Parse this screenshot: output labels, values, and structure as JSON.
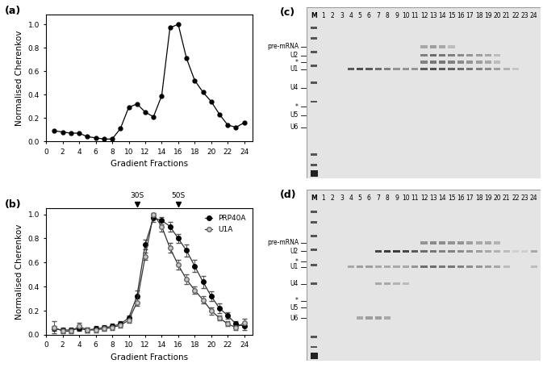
{
  "chart_data": [
    {
      "type": "line",
      "title": "(a)",
      "x_label": "Gradient Fractions",
      "y_label": "Normalised Cherenkov",
      "x": [
        1,
        2,
        3,
        4,
        5,
        6,
        7,
        8,
        9,
        10,
        11,
        12,
        13,
        14,
        15,
        16,
        17,
        18,
        19,
        20,
        21,
        22,
        23,
        24
      ],
      "series": [
        {
          "name": null,
          "color": "#000000",
          "marker": "o",
          "line_style": "solid",
          "values": [
            0.09,
            0.08,
            0.07,
            0.07,
            0.04,
            0.03,
            0.02,
            0.02,
            0.11,
            0.29,
            0.32,
            0.25,
            0.21,
            0.39,
            0.97,
            1.0,
            0.71,
            0.52,
            0.42,
            0.34,
            0.23,
            0.14,
            0.12,
            0.16
          ]
        }
      ],
      "xlim": [
        0,
        25
      ],
      "ylim": [
        0,
        1.08
      ],
      "xticks": [
        0,
        2,
        4,
        6,
        8,
        10,
        12,
        14,
        16,
        18,
        20,
        22,
        24
      ],
      "yticks": [
        {
          "value": 0,
          "label": "0.0"
        },
        {
          "value": 0.2,
          "label": "0.2"
        },
        {
          "value": 0.4,
          "label": "0.4"
        },
        {
          "value": 0.6,
          "label": "0.6"
        },
        {
          "value": 0.8,
          "label": "0.8"
        },
        {
          "value": 1.0,
          "label": "1.0"
        }
      ]
    },
    {
      "type": "line",
      "title": "(b)",
      "x_label": "Gradient Fractions",
      "y_label": "Normalised Cherenkov",
      "x": [
        1,
        2,
        3,
        4,
        5,
        6,
        7,
        8,
        9,
        10,
        11,
        12,
        13,
        14,
        15,
        16,
        17,
        18,
        19,
        20,
        21,
        22,
        23,
        24
      ],
      "series": [
        {
          "name": "PRP40A",
          "color": "#000000",
          "marker": "o",
          "line_style": "solid",
          "values": [
            0.05,
            0.04,
            0.04,
            0.05,
            0.04,
            0.05,
            0.06,
            0.07,
            0.09,
            0.14,
            0.32,
            0.75,
            0.97,
            0.95,
            0.9,
            0.8,
            0.7,
            0.57,
            0.44,
            0.32,
            0.22,
            0.16,
            0.09,
            0.07
          ],
          "errors": [
            0.02,
            0.02,
            0.02,
            0.02,
            0.02,
            0.02,
            0.02,
            0.02,
            0.02,
            0.02,
            0.05,
            0.04,
            0.03,
            0.03,
            0.04,
            0.04,
            0.05,
            0.05,
            0.05,
            0.04,
            0.04,
            0.03,
            0.02,
            0.03
          ]
        },
        {
          "name": "U1A",
          "color": "#c8c8c8",
          "marker": "o",
          "line_style": "solid",
          "values": [
            0.06,
            0.03,
            0.03,
            0.07,
            0.04,
            0.04,
            0.05,
            0.06,
            0.08,
            0.12,
            0.27,
            0.65,
            1.0,
            0.9,
            0.72,
            0.58,
            0.46,
            0.37,
            0.29,
            0.2,
            0.14,
            0.09,
            0.06,
            0.1
          ],
          "errors": [
            0.05,
            0.02,
            0.02,
            0.03,
            0.02,
            0.02,
            0.02,
            0.02,
            0.02,
            0.02,
            0.03,
            0.03,
            0.01,
            0.04,
            0.04,
            0.04,
            0.04,
            0.03,
            0.03,
            0.03,
            0.02,
            0.02,
            0.02,
            0.03
          ]
        }
      ],
      "annotations": [
        {
          "text": "30S",
          "x": 11
        },
        {
          "text": "50S",
          "x": 16
        }
      ],
      "legend": "upper right",
      "xlim": [
        0,
        25
      ],
      "ylim": [
        0,
        1.05
      ],
      "xticks": [
        0,
        2,
        4,
        6,
        8,
        10,
        12,
        14,
        16,
        18,
        20,
        22,
        24
      ],
      "yticks": [
        {
          "value": 0,
          "label": "0.0"
        },
        {
          "value": 0.2,
          "label": "0.2"
        },
        {
          "value": 0.4,
          "label": "0.4"
        },
        {
          "value": 0.6,
          "label": "0.6"
        },
        {
          "value": 0.8,
          "label": "0.8"
        },
        {
          "value": 1.0,
          "label": "1.0"
        }
      ]
    }
  ],
  "gels": [
    {
      "title": "(c)",
      "lanes": [
        "M",
        "1",
        "2",
        "3",
        "4",
        "5",
        "6",
        "7",
        "8",
        "9",
        "10",
        "11",
        "12",
        "13",
        "14",
        "15",
        "16",
        "17",
        "18",
        "19",
        "20",
        "21",
        "22",
        "23",
        "24"
      ],
      "bands": [
        {
          "label": "pre-mRNA",
          "intensity": [
            0,
            0,
            0,
            0,
            0,
            0,
            0,
            0,
            0,
            0,
            0,
            0.3,
            0.35,
            0.3,
            0.2,
            0,
            0,
            0,
            0,
            0,
            0,
            0,
            0,
            0
          ]
        },
        {
          "label": "U2",
          "intensity": [
            0,
            0,
            0,
            0,
            0,
            0,
            0,
            0,
            0,
            0,
            0,
            0.5,
            0.6,
            0.55,
            0.5,
            0.45,
            0.4,
            0.35,
            0.3,
            0.2,
            0,
            0,
            0,
            0
          ]
        },
        {
          "label": "*",
          "intensity": [
            0,
            0,
            0,
            0,
            0,
            0,
            0,
            0,
            0,
            0,
            0,
            0.5,
            0.55,
            0.55,
            0.5,
            0.45,
            0.4,
            0.35,
            0.3,
            0.2,
            0,
            0,
            0,
            0
          ]
        },
        {
          "label": "U1",
          "intensity": [
            0,
            0,
            0,
            0.7,
            0.75,
            0.7,
            0.6,
            0.5,
            0.4,
            0.4,
            0.4,
            0.7,
            0.75,
            0.7,
            0.65,
            0.6,
            0.55,
            0.5,
            0.45,
            0.35,
            0.25,
            0.15,
            0,
            0
          ]
        },
        {
          "label": "U4",
          "intensity": [
            0,
            0,
            0,
            0,
            0,
            0,
            0,
            0,
            0,
            0,
            0,
            0,
            0,
            0,
            0,
            0,
            0,
            0,
            0,
            0,
            0,
            0,
            0,
            0
          ]
        },
        {
          "label": "*",
          "intensity": [
            0,
            0,
            0,
            0,
            0,
            0,
            0,
            0,
            0,
            0,
            0,
            0,
            0,
            0,
            0,
            0,
            0,
            0,
            0,
            0,
            0,
            0,
            0,
            0
          ]
        },
        {
          "label": "U5",
          "intensity": [
            0,
            0,
            0,
            0,
            0,
            0,
            0,
            0,
            0,
            0,
            0,
            0,
            0,
            0,
            0,
            0,
            0,
            0,
            0,
            0,
            0,
            0,
            0,
            0
          ]
        },
        {
          "label": "U6",
          "intensity": [
            0,
            0,
            0,
            0,
            0,
            0,
            0,
            0,
            0,
            0,
            0,
            0,
            0,
            0,
            0,
            0,
            0,
            0,
            0,
            0,
            0,
            0,
            0,
            0
          ]
        }
      ]
    },
    {
      "title": "(d)",
      "lanes": [
        "M",
        "1",
        "2",
        "3",
        "4",
        "5",
        "6",
        "7",
        "8",
        "9",
        "10",
        "11",
        "12",
        "13",
        "14",
        "15",
        "16",
        "17",
        "18",
        "19",
        "20",
        "21",
        "22",
        "23",
        "24"
      ],
      "bands": [
        {
          "label": "pre-mRNA",
          "intensity": [
            0,
            0,
            0,
            0,
            0,
            0,
            0,
            0,
            0,
            0,
            0,
            0.4,
            0.45,
            0.45,
            0.4,
            0.4,
            0.35,
            0.3,
            0.3,
            0.25,
            0,
            0,
            0,
            0
          ]
        },
        {
          "label": "U2",
          "intensity": [
            0,
            0,
            0,
            0,
            0,
            0,
            0.8,
            0.85,
            0.85,
            0.8,
            0.7,
            0.6,
            0.55,
            0.5,
            0.5,
            0.45,
            0.4,
            0.35,
            0.3,
            0.25,
            0.2,
            0.1,
            0.1,
            0.3
          ]
        },
        {
          "label": "*",
          "intensity": [
            0,
            0,
            0,
            0,
            0,
            0,
            0,
            0,
            0,
            0,
            0,
            0,
            0,
            0,
            0,
            0,
            0,
            0,
            0,
            0,
            0,
            0,
            0,
            0
          ]
        },
        {
          "label": "U1",
          "intensity": [
            0,
            0,
            0,
            0.3,
            0.35,
            0.35,
            0.3,
            0.3,
            0.3,
            0.3,
            0.4,
            0.6,
            0.6,
            0.55,
            0.55,
            0.5,
            0.45,
            0.4,
            0.35,
            0.3,
            0.2,
            0,
            0,
            0.2
          ]
        },
        {
          "label": "U4",
          "intensity": [
            0,
            0,
            0,
            0,
            0,
            0,
            0.3,
            0.3,
            0.25,
            0.2,
            0,
            0,
            0,
            0,
            0,
            0,
            0,
            0,
            0,
            0,
            0,
            0,
            0,
            0
          ]
        },
        {
          "label": "*",
          "intensity": [
            0,
            0,
            0,
            0,
            0,
            0,
            0,
            0,
            0,
            0,
            0,
            0,
            0,
            0,
            0,
            0,
            0,
            0,
            0,
            0,
            0,
            0,
            0,
            0
          ]
        },
        {
          "label": "U5",
          "intensity": [
            0,
            0,
            0,
            0,
            0,
            0,
            0,
            0,
            0,
            0,
            0,
            0,
            0,
            0,
            0,
            0,
            0,
            0,
            0,
            0,
            0,
            0,
            0,
            0
          ]
        },
        {
          "label": "U6",
          "intensity": [
            0,
            0,
            0,
            0,
            0.3,
            0.35,
            0.35,
            0.3,
            0,
            0,
            0,
            0,
            0,
            0,
            0,
            0,
            0,
            0,
            0,
            0,
            0,
            0,
            0,
            0
          ]
        }
      ]
    }
  ]
}
